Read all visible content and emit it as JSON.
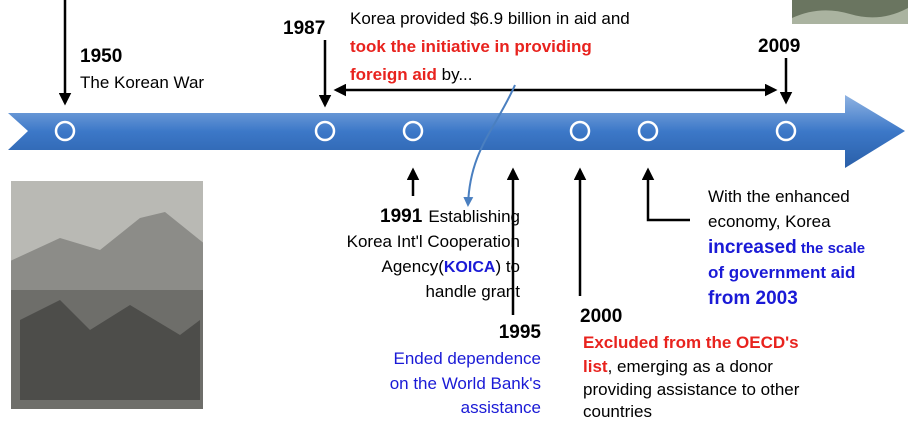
{
  "timeline": {
    "events": [
      {
        "year": "1950",
        "lines": [
          [
            "The Korean War"
          ]
        ]
      },
      {
        "year": "1987",
        "lines": [
          [
            "Korea provided $6.9 billion in aid and"
          ],
          [
            "took the initiative in providing"
          ],
          [
            "foreign aid",
            " by..."
          ]
        ]
      },
      {
        "year": "2009"
      },
      {
        "year": "1991",
        "lines": [
          [
            "Establishing"
          ],
          [
            "Korea Int'l Cooperation"
          ],
          [
            "Agency(",
            "KOICA",
            ") to"
          ],
          [
            "handle grant"
          ]
        ]
      },
      {
        "year": "1995",
        "lines": [
          [
            "Ended dependence"
          ],
          [
            "on the World Bank's"
          ],
          [
            "assistance"
          ]
        ]
      },
      {
        "year": "2000",
        "lines": [
          [
            "Excluded from the OECD's"
          ],
          [
            "list",
            ", emerging as a donor"
          ],
          [
            "providing assistance to other"
          ],
          [
            "countries"
          ]
        ]
      },
      {
        "lines": [
          [
            "With the enhanced"
          ],
          [
            "economy, Korea"
          ],
          [
            "increased",
            " the scale"
          ],
          [
            "of government aid"
          ],
          [
            "from 2003"
          ]
        ]
      }
    ]
  }
}
